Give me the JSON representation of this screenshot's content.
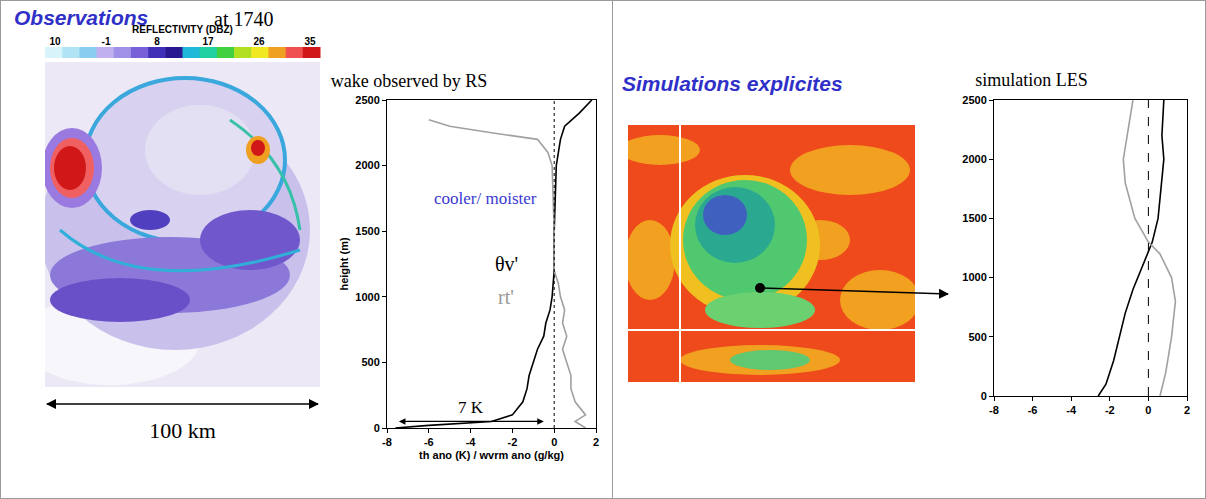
{
  "observations": {
    "title": "Observations",
    "time_label": "at 1740",
    "colorbar": {
      "title": "REFLECTIVITY (DBZ)",
      "labels": [
        10,
        -1,
        8,
        17,
        26,
        35
      ],
      "colors": [
        "#d8f4fa",
        "#b0e4f4",
        "#88cef0",
        "#c0b0f0",
        "#a090e8",
        "#7860d8",
        "#4030b8",
        "#2a1890",
        "#20b8d8",
        "#20d0a0",
        "#40d040",
        "#b0e020",
        "#f0e820",
        "#f0a020",
        "#f05050",
        "#d01818"
      ]
    },
    "scale_label": "100 km"
  },
  "simulations": {
    "title": "Simulations explicites"
  },
  "chart_data": [
    {
      "type": "line",
      "title": "wake observed by RS",
      "x_label": "th ano (K) / wvrm ano (g/kg)",
      "y_label": "height (m)",
      "xlim": [
        -8,
        2
      ],
      "xticks": [
        -8,
        -6,
        -4,
        -2,
        0,
        2
      ],
      "ylim": [
        0,
        2500
      ],
      "yticks": [
        0,
        500,
        1000,
        1500,
        2000,
        2500
      ],
      "zero_line": {
        "x": 0,
        "line_style": "dot"
      },
      "series": [
        {
          "color": "#000000",
          "line_style": "solid",
          "x": [
            -7.6,
            -6.0,
            -3.0,
            -2.0,
            -1.5,
            -1.3,
            -1.2,
            -1.0,
            -0.8,
            -0.5,
            -0.4,
            -0.2,
            -0.1,
            0.0,
            0.0,
            0.1,
            0.3,
            0.5,
            1.2,
            1.8
          ],
          "y": [
            0,
            20,
            50,
            100,
            200,
            300,
            400,
            500,
            600,
            700,
            800,
            900,
            1000,
            1200,
            1500,
            2000,
            2200,
            2300,
            2400,
            2500
          ]
        },
        {
          "color": "#a0a0a0",
          "line_style": "solid",
          "x": [
            1.5,
            1.0,
            1.5,
            1.0,
            0.8,
            0.8,
            0.6,
            0.4,
            0.6,
            0.4,
            0.5,
            0.3,
            0.2,
            0.0,
            0.0,
            -0.1,
            -0.3,
            -0.8,
            -3.0,
            -5.0,
            -6.0
          ],
          "y": [
            0,
            50,
            100,
            200,
            300,
            400,
            500,
            600,
            700,
            800,
            900,
            1000,
            1100,
            1200,
            1500,
            2000,
            2100,
            2200,
            2250,
            2300,
            2350
          ]
        }
      ],
      "annotations": [
        {
          "text": "cooler/ moister",
          "x": -3.3,
          "y": 1750,
          "color": "#3a3ad0"
        },
        {
          "text": "θv'",
          "x": -2.3,
          "y": 1250,
          "color": "#000000"
        },
        {
          "text": "rt'",
          "x": -2.3,
          "y": 1000,
          "color": "#999999"
        }
      ],
      "span_arrow": {
        "text": "7 K",
        "from": -7.5,
        "to": -0.5,
        "y": 50
      }
    },
    {
      "type": "line",
      "title": "simulation LES",
      "xlim": [
        -8,
        2
      ],
      "xticks": [
        -8,
        -6,
        -4,
        -2,
        0,
        2
      ],
      "ylim": [
        0,
        2500
      ],
      "yticks": [
        0,
        500,
        1000,
        1500,
        2000,
        2500
      ],
      "zero_line": {
        "x": 0,
        "line_style": "dash"
      },
      "series": [
        {
          "color": "#000000",
          "line_style": "solid",
          "x": [
            -2.6,
            -2.2,
            -1.8,
            -1.5,
            -1.2,
            -0.8,
            -0.3,
            0.2,
            0.5,
            0.7,
            0.8,
            0.7,
            0.8
          ],
          "y": [
            0,
            100,
            300,
            500,
            700,
            900,
            1100,
            1300,
            1500,
            1800,
            2000,
            2200,
            2500
          ]
        },
        {
          "color": "#a0a0a0",
          "line_style": "solid",
          "x": [
            0.6,
            0.9,
            1.2,
            1.4,
            1.2,
            0.6,
            0.0,
            -0.7,
            -1.2,
            -1.3,
            -1.1,
            -0.8
          ],
          "y": [
            0,
            200,
            500,
            800,
            1000,
            1200,
            1300,
            1500,
            1800,
            2000,
            2200,
            2500
          ]
        }
      ]
    }
  ]
}
